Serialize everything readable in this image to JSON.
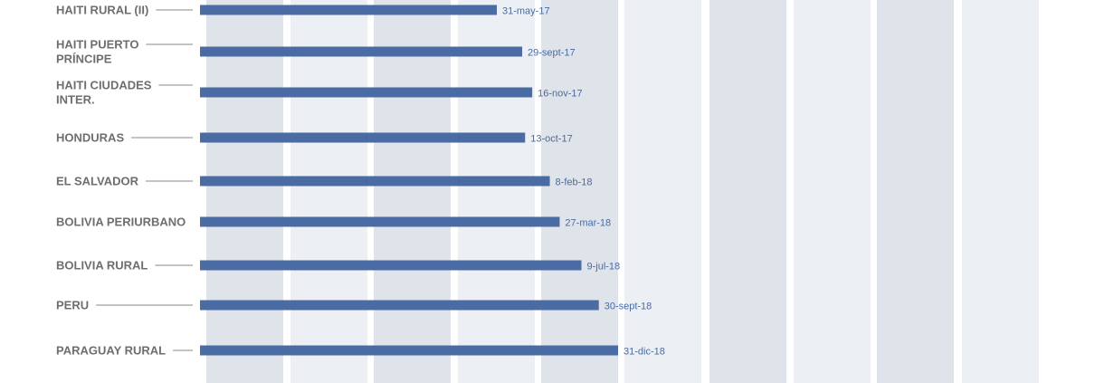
{
  "chart_data": {
    "type": "bar",
    "orientation": "horizontal",
    "title": "",
    "xlabel": "",
    "ylabel": "",
    "colors": {
      "bar": "#4a6ba3",
      "date_label": "#4a6ba3",
      "category_label": "#6d6e70",
      "leader_line": "#8a8a8a",
      "band_dark": "#dfe3ea",
      "band_light": "#eceff3"
    },
    "grid": "alternating vertical bands",
    "categories": [
      "HAITI RURAL (II)",
      "HAITI PUERTO PRÍNCIPE",
      "HAITI CIUDADES INTER.",
      "HONDURAS",
      "EL SALVADOR",
      "BOLIVIA PERIURBANO",
      "BOLIVIA RURAL",
      "PERU",
      "PARAGUAY RURAL"
    ],
    "category_lines": [
      [
        "HAITI RURAL (II)"
      ],
      [
        "HAITI PUERTO",
        "PRÍNCIPE"
      ],
      [
        "HAITI CIUDADES",
        "INTER."
      ],
      [
        "HONDURAS"
      ],
      [
        "EL SALVADOR"
      ],
      [
        "BOLIVIA PERIURBANO"
      ],
      [
        "BOLIVIA RURAL"
      ],
      [
        "PERU"
      ],
      [
        "PARAGUAY RURAL"
      ]
    ],
    "values": [
      "2017-05-31",
      "2017-09-29",
      "2017-11-16",
      "2017-10-13",
      "2018-02-08",
      "2018-03-27",
      "2018-07-09",
      "2018-09-30",
      "2018-12-31"
    ],
    "value_labels": [
      "31-may-17",
      "29-sept-17",
      "16-nov-17",
      "13-oct-17",
      "8-feb-18",
      "27-mar-18",
      "9-jul-18",
      "30-sept-18",
      "31-dic-18"
    ]
  }
}
